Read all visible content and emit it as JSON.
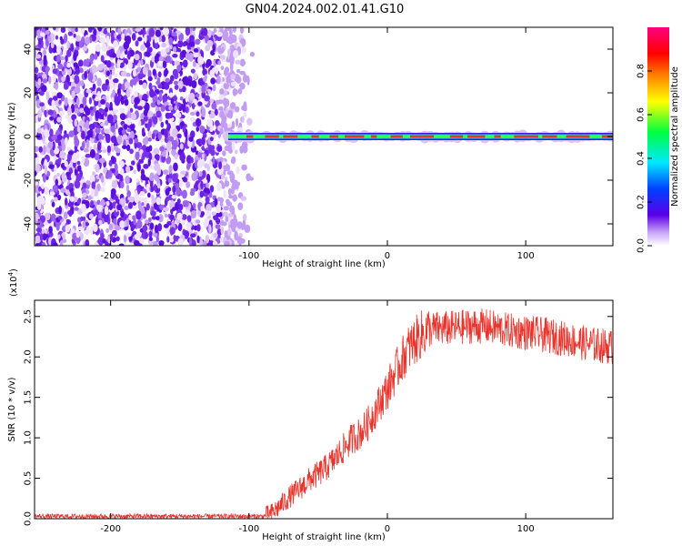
{
  "title": "GN04.2024.002.01.41.G10",
  "colors": {
    "snr_line": "#e8342c",
    "track_red": "#e8342c",
    "noise_purple": "#6a1ee6",
    "frame": "#000000"
  },
  "chart_data": [
    {
      "type": "heatmap",
      "title": "GN04.2024.002.01.41.G10",
      "xlabel": "Height of straight line (km)",
      "ylabel": "Frequency (Hz)",
      "xlim": [
        -255,
        163
      ],
      "ylim": [
        -50,
        50
      ],
      "x_ticks": [
        -200,
        -100,
        0,
        100
      ],
      "x_tick_labels": [
        "-200",
        "-100",
        "0",
        "100"
      ],
      "y_ticks": [
        -40,
        -20,
        0,
        20,
        40
      ],
      "y_tick_labels": [
        "-40",
        "-20",
        "0",
        "20",
        "40"
      ],
      "grid": false,
      "description_of_content": {
        "noise_region_x": [
          -255,
          -97
        ],
        "tone_start_x": -115,
        "tone_frequency_hz": 0
      },
      "colorbar": {
        "label": "Normalized spectral amplitude",
        "range": [
          0,
          1
        ],
        "ticks": [
          0.0,
          0.2,
          0.4,
          0.6,
          0.8
        ],
        "tick_labels": [
          "0.0",
          "0.2",
          "0.4",
          "0.6",
          "0.8"
        ],
        "colormap": [
          "#ffffff",
          "#5a00e8",
          "#0040ff",
          "#00e8ff",
          "#00ff40",
          "#ffff00",
          "#ff8000",
          "#ff0000",
          "#ff0080"
        ]
      }
    },
    {
      "type": "line",
      "xlabel": "Height of straight line (km)",
      "ylabel": "SNR (10 * v/v)",
      "y_multiplier_label": "(x10",
      "y_multiplier_exponent": "4",
      "y_multiplier_close": ")",
      "xlim": [
        -255,
        163
      ],
      "ylim": [
        0,
        2.7
      ],
      "x_ticks": [
        -200,
        -100,
        0,
        100
      ],
      "x_tick_labels": [
        "-200",
        "-100",
        "0",
        "100"
      ],
      "y_ticks": [
        0.0,
        0.5,
        1.0,
        1.5,
        2.0,
        2.5
      ],
      "y_tick_labels": [
        "0.0",
        "0.5",
        "1.0",
        "1.5",
        "2.0",
        "2.5"
      ],
      "grid": false,
      "series": [
        {
          "x": [
            -255,
            -240,
            -220,
            -200,
            -180,
            -160,
            -140,
            -120,
            -100,
            -90,
            -85,
            -80,
            -75,
            -70,
            -65,
            -60,
            -55,
            -50,
            -45,
            -40,
            -35,
            -30,
            -25,
            -20,
            -15,
            -10,
            -5,
            0,
            5,
            10,
            15,
            20,
            25,
            30,
            35,
            40,
            50,
            60,
            70,
            80,
            90,
            100,
            110,
            120,
            130,
            140,
            150,
            163
          ],
          "y": [
            0.03,
            0.03,
            0.03,
            0.03,
            0.03,
            0.03,
            0.03,
            0.03,
            0.03,
            0.03,
            0.05,
            0.12,
            0.2,
            0.28,
            0.35,
            0.42,
            0.5,
            0.55,
            0.62,
            0.7,
            0.8,
            0.9,
            1.0,
            1.05,
            1.15,
            1.3,
            1.45,
            1.6,
            1.78,
            1.95,
            2.1,
            2.2,
            2.28,
            2.33,
            2.35,
            2.35,
            2.36,
            2.38,
            2.38,
            2.35,
            2.32,
            2.3,
            2.28,
            2.25,
            2.22,
            2.18,
            2.15,
            2.12
          ]
        }
      ]
    }
  ]
}
